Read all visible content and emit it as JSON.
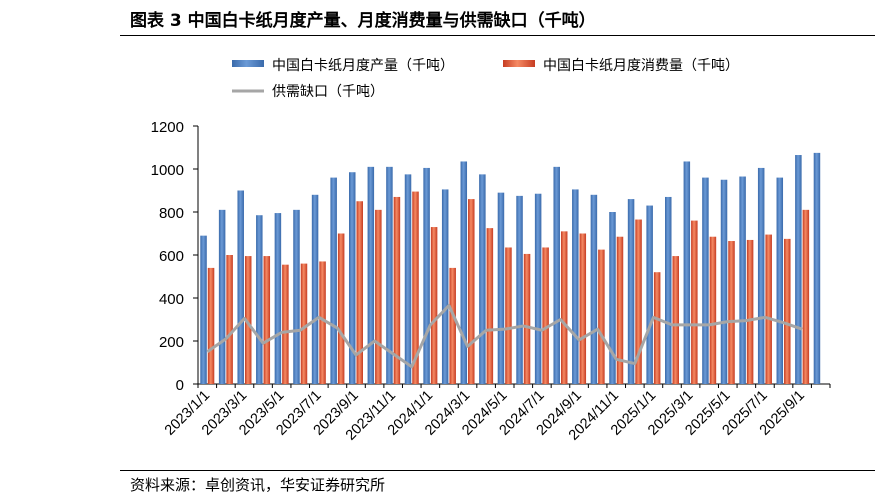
{
  "title": "图表 3 中国白卡纸月度产量、月度消费量与供需缺口（千吨）",
  "source": "资料来源：卓创资讯，华安证券研究所",
  "chart_data": {
    "type": "bar",
    "x": [
      "2023/1/1",
      "2023/2/1",
      "2023/3/1",
      "2023/4/1",
      "2023/5/1",
      "2023/6/1",
      "2023/7/1",
      "2023/8/1",
      "2023/9/1",
      "2023/10/1",
      "2023/11/1",
      "2023/12/1",
      "2024/1/1",
      "2024/2/1",
      "2024/3/1",
      "2024/4/1",
      "2024/5/1",
      "2024/6/1",
      "2024/7/1",
      "2024/8/1",
      "2024/9/1",
      "2024/10/1",
      "2024/11/1",
      "2024/12/1",
      "2025/1/1",
      "2025/2/1",
      "2025/3/1",
      "2025/4/1",
      "2025/5/1",
      "2025/6/1",
      "2025/7/1",
      "2025/8/1",
      "2025/9/1",
      "2025/10/1"
    ],
    "tick_labels": [
      "2023/1/1",
      "2023/3/1",
      "2023/5/1",
      "2023/7/1",
      "2023/9/1",
      "2023/11/1",
      "2024/1/1",
      "2024/3/1",
      "2024/5/1",
      "2024/7/1",
      "2024/9/1",
      "2024/11/1",
      "2025/1/1",
      "2025/3/1",
      "2025/5/1",
      "2025/7/1",
      "2025/9/1"
    ],
    "ylim": [
      0,
      1200
    ],
    "yticks": [
      0,
      200,
      400,
      600,
      800,
      1000,
      1200
    ],
    "legend_position": "top",
    "grid": false,
    "series": [
      {
        "name": "中国白卡纸月度产量（千吨）",
        "type": "bar",
        "color": "#4a7ebb",
        "values": [
          690,
          810,
          900,
          785,
          795,
          810,
          880,
          960,
          985,
          1010,
          1010,
          975,
          1005,
          905,
          1035,
          975,
          890,
          875,
          885,
          1010,
          905,
          880,
          800,
          860,
          830,
          870,
          1035,
          960,
          950,
          965,
          1005,
          960,
          1065,
          1075
        ]
      },
      {
        "name": "中国白卡纸月度消费量（千吨）",
        "type": "bar",
        "color": "#e0543d",
        "values": [
          540,
          600,
          595,
          595,
          555,
          560,
          570,
          700,
          850,
          810,
          870,
          895,
          730,
          540,
          860,
          725,
          635,
          605,
          635,
          710,
          700,
          625,
          685,
          765,
          520,
          595,
          760,
          685,
          665,
          670,
          695,
          675,
          810,
          null
        ]
      },
      {
        "name": "供需缺口（千吨）",
        "type": "line",
        "color": "#a6a6a6",
        "values": [
          150,
          210,
          305,
          190,
          240,
          250,
          310,
          260,
          135,
          200,
          140,
          80,
          275,
          365,
          175,
          250,
          255,
          270,
          250,
          300,
          205,
          255,
          115,
          95,
          310,
          275,
          275,
          275,
          290,
          295,
          310,
          285,
          255,
          null
        ]
      }
    ]
  }
}
